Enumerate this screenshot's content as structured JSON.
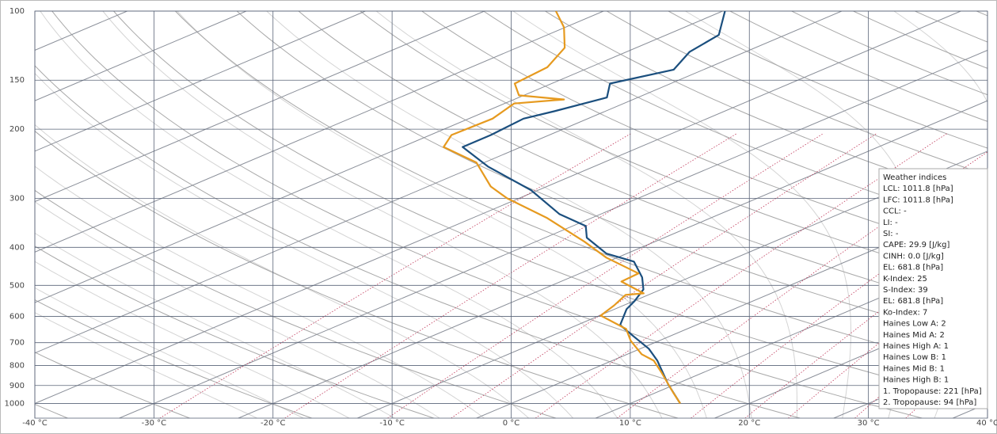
{
  "chart_data": {
    "type": "skewt",
    "xlim": [
      -40,
      40
    ],
    "xticks": [
      {
        "value": -40,
        "label": "-40 °C"
      },
      {
        "value": -30,
        "label": "-30 °C"
      },
      {
        "value": -20,
        "label": "-20 °C"
      },
      {
        "value": -10,
        "label": "-10 °C"
      },
      {
        "value": 0,
        "label": "0 °C"
      },
      {
        "value": 10,
        "label": "10 °C"
      },
      {
        "value": 20,
        "label": "20 °C"
      },
      {
        "value": 30,
        "label": "30 °C"
      },
      {
        "value": 40,
        "label": "40 °C"
      }
    ],
    "ylim": [
      1090,
      100
    ],
    "yticks": [
      100,
      150,
      200,
      300,
      400,
      500,
      600,
      700,
      800,
      900,
      1000
    ],
    "log_y": true,
    "grid": true,
    "series": [
      {
        "color": "#1b4f7e",
        "x": [
          14.2,
          9.4,
          3.8,
          0.7,
          -2.9,
          -6.4,
          -9.0,
          -9.9,
          -11.5,
          -14.0,
          -17.8,
          -21.7,
          -26.5,
          -28.9,
          -33.5,
          -40.6,
          -48.9,
          -54.9,
          -54.9,
          -55.4,
          -54.3,
          -52.6,
          -55.1,
          -52.5,
          -54.7,
          -55.6,
          -59.8
        ],
        "y": [
          1000,
          894,
          778,
          725,
          676,
          631,
          575,
          549,
          512,
          477,
          435,
          415,
          378,
          353,
          329,
          286,
          249,
          222,
          207,
          188,
          180,
          166,
          153,
          141,
          127,
          115,
          100
        ]
      },
      {
        "color": "#e69a1f",
        "x": [
          14.2,
          11.4,
          6.5,
          3.5,
          1.2,
          -2.4,
          -5.1,
          -9.9,
          -10.8,
          -11.9,
          -10.7,
          -14.9,
          -15.1,
          -20.9,
          -25.9,
          -33.7,
          -41.0,
          -44.7,
          -50.7,
          -56.5,
          -58.2,
          -58.0,
          -59.2,
          -55.8,
          -60.4,
          -63.1,
          -63.6,
          -66.0,
          -70.1,
          -74.0
        ],
        "y": [
          1000,
          937,
          834,
          778,
          749,
          692,
          646,
          597,
          562,
          529,
          524,
          489,
          466,
          425,
          387,
          337,
          300,
          280,
          243,
          222,
          207,
          188,
          172,
          168,
          164,
          153,
          139,
          124,
          110,
          100
        ]
      }
    ],
    "indices": {
      "title": "Weather indices",
      "lines": [
        "LCL: 1011.8 [hPa]",
        "LFC: 1011.8 [hPa]",
        "CCL: -",
        "LI: -",
        "SI: -",
        "CAPE: 29.9 [J/kg]",
        "CINH: 0.0 [J/kg]",
        "EL: 681.8 [hPa]",
        "K-Index: 25",
        "S-Index: 39",
        "EL: 681.8 [hPa]",
        "Ko-Index: 7",
        "Haines Low A: 2",
        "Haines Mid A: 2",
        "Haines High A: 1",
        "Haines Low B: 1",
        "Haines Mid B: 1",
        "Haines High B: 1",
        "1. Tropopause: 221 [hPa]",
        "2. Tropopause: 94 [hPa]"
      ]
    }
  }
}
